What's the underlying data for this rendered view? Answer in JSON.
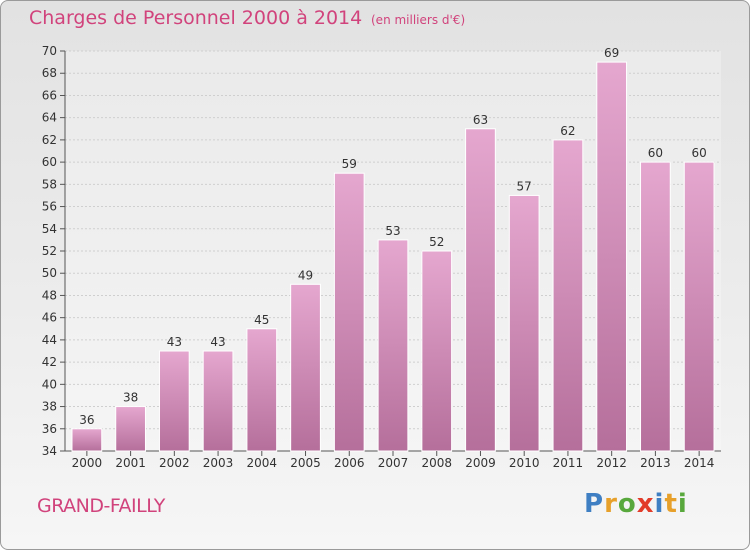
{
  "header": {
    "title": "Charges de Personnel 2000 à 2014",
    "subtitle": "(en milliers d'€)"
  },
  "footer": {
    "commune": "GRAND-FAILLY",
    "logo": {
      "text": "Proxiti",
      "letters": [
        {
          "char": "P",
          "color": "#3f7fc3"
        },
        {
          "char": "r",
          "color": "#e7a02a"
        },
        {
          "char": "o",
          "color": "#58a83c"
        },
        {
          "char": "x",
          "color": "#e23c2a"
        },
        {
          "char": "i",
          "color": "#3f7fc3"
        },
        {
          "char": "t",
          "color": "#e7a02a"
        },
        {
          "char": "i",
          "color": "#58a83c"
        }
      ]
    }
  },
  "colors": {
    "accent": "#d1437c",
    "bar_top": "#e5a7cf",
    "bar_bottom": "#b56f9b",
    "grid": "#cfcfcf"
  },
  "chart_data": {
    "type": "bar",
    "title": "Charges de Personnel 2000 à 2014",
    "subtitle": "(en milliers d'€)",
    "categories": [
      "2000",
      "2001",
      "2002",
      "2003",
      "2004",
      "2005",
      "2006",
      "2007",
      "2008",
      "2009",
      "2010",
      "2011",
      "2012",
      "2013",
      "2014"
    ],
    "values": [
      36,
      38,
      43,
      43,
      45,
      49,
      59,
      53,
      52,
      63,
      57,
      62,
      69,
      60,
      60
    ],
    "ylim": [
      34,
      70
    ],
    "yticks": [
      34,
      36,
      38,
      40,
      42,
      44,
      46,
      48,
      50,
      52,
      54,
      56,
      58,
      60,
      62,
      64,
      66,
      68,
      70
    ],
    "grid": true,
    "data_labels": true
  }
}
